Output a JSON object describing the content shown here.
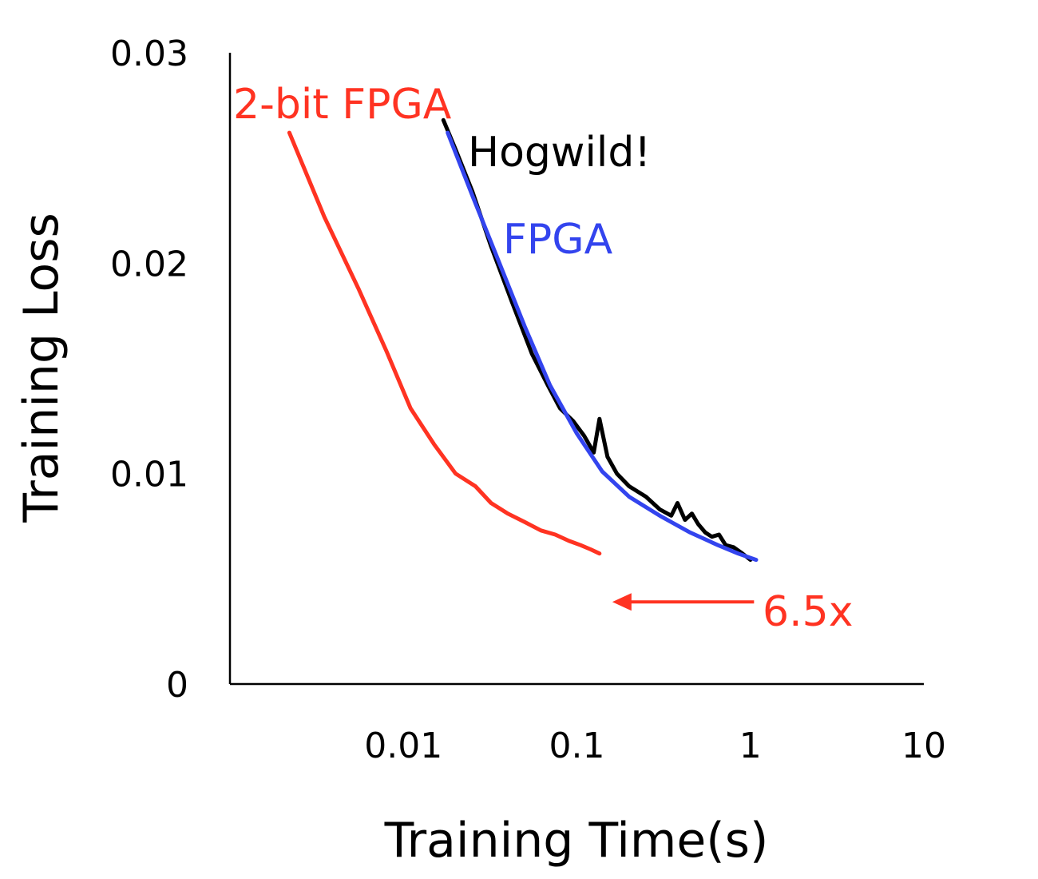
{
  "chart_data": {
    "type": "line",
    "title": "",
    "xlabel": "Training Time(s)",
    "ylabel": "Training Loss",
    "x_scale": "log",
    "xlim": [
      0.001,
      10
    ],
    "ylim": [
      0,
      0.03
    ],
    "x_ticks": [
      {
        "value": 0.01,
        "label": "0.01"
      },
      {
        "value": 0.1,
        "label": "0.1"
      },
      {
        "value": 1,
        "label": "1"
      },
      {
        "value": 10,
        "label": "10"
      }
    ],
    "y_ticks": [
      {
        "value": 0,
        "label": "0"
      },
      {
        "value": 0.01,
        "label": "0.01"
      },
      {
        "value": 0.02,
        "label": "0.02"
      },
      {
        "value": 0.03,
        "label": "0.03"
      }
    ],
    "grid": false,
    "series": [
      {
        "name": "2-bit FPGA",
        "color": "#ff3322",
        "x": [
          0.0022,
          0.0035,
          0.0055,
          0.008,
          0.011,
          0.015,
          0.02,
          0.026,
          0.032,
          0.04,
          0.05,
          0.062,
          0.075,
          0.09,
          0.105,
          0.12,
          0.135
        ],
        "y": [
          0.0262,
          0.0222,
          0.0188,
          0.0158,
          0.0131,
          0.0114,
          0.01,
          0.0094,
          0.0086,
          0.0081,
          0.0077,
          0.0073,
          0.0071,
          0.0068,
          0.0066,
          0.0064,
          0.0062
        ]
      },
      {
        "name": "Hogwild!",
        "color": "#000000",
        "x": [
          0.017,
          0.02,
          0.025,
          0.032,
          0.042,
          0.055,
          0.068,
          0.08,
          0.095,
          0.11,
          0.125,
          0.135,
          0.15,
          0.17,
          0.2,
          0.25,
          0.3,
          0.35,
          0.38,
          0.42,
          0.46,
          0.5,
          0.55,
          0.6,
          0.66,
          0.72,
          0.8,
          0.9,
          1.0
        ],
        "y": [
          0.0268,
          0.0254,
          0.0234,
          0.0208,
          0.0182,
          0.0157,
          0.0142,
          0.0131,
          0.0125,
          0.0118,
          0.011,
          0.0126,
          0.0108,
          0.01,
          0.0094,
          0.0089,
          0.0083,
          0.008,
          0.0086,
          0.0078,
          0.0081,
          0.0076,
          0.0072,
          0.007,
          0.0071,
          0.0066,
          0.0065,
          0.0062,
          0.0059
        ]
      },
      {
        "name": "FPGA",
        "color": "#3344ee",
        "x": [
          0.018,
          0.025,
          0.035,
          0.05,
          0.07,
          0.1,
          0.14,
          0.2,
          0.3,
          0.45,
          0.65,
          0.85,
          1.08
        ],
        "y": [
          0.0262,
          0.0232,
          0.0202,
          0.017,
          0.0142,
          0.0119,
          0.0101,
          0.0089,
          0.008,
          0.0072,
          0.0066,
          0.0062,
          0.0059
        ]
      }
    ],
    "annotation": {
      "text": "6.5x",
      "color": "#ff3322",
      "arrow_from_x": 1.05,
      "arrow_to_x": 0.16,
      "arrow_y": 0.0039
    }
  }
}
